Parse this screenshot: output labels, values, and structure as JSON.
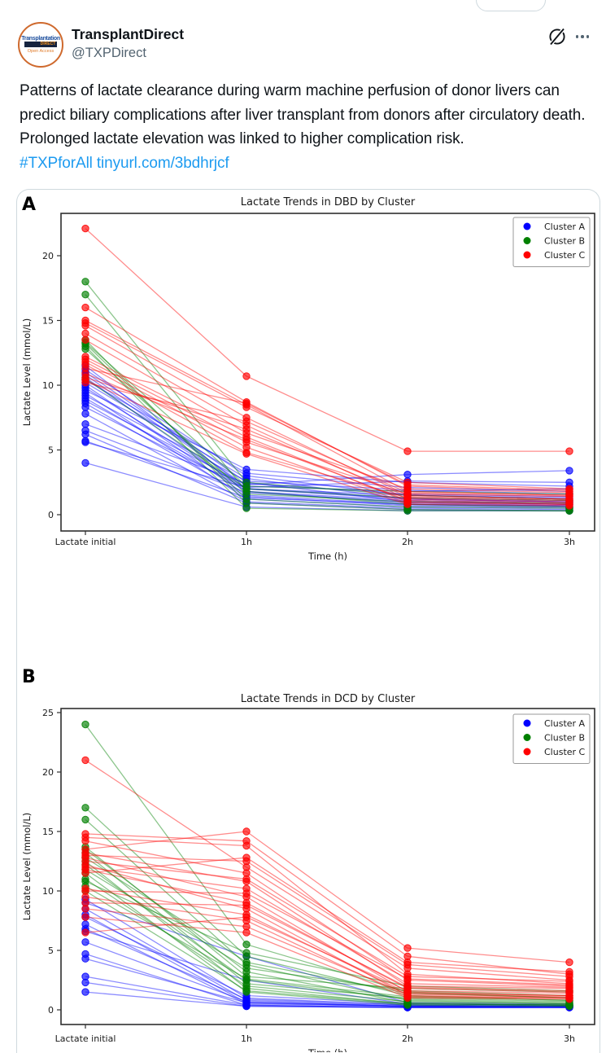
{
  "header": {
    "name": "TransplantDirect",
    "handle": "@TXPDirect",
    "avatar": {
      "line1": "Transplantation",
      "line2": "DIRECT",
      "line3": "Open Access"
    },
    "icons": {
      "grok": "circle-slash",
      "more": "ellipsis"
    }
  },
  "tweet": {
    "text": "Patterns of lactate clearance during warm machine perfusion of donor livers can predict biliary complications after liver transplant from donors after circulatory death. Prolonged lactate elevation was linked to higher complication risk. ",
    "hashtag": "#TXPforAll",
    "link": "tinyurl.com/3bdhrjcf",
    "link_color": "#1d9bf0",
    "text_color": "#0f1419",
    "border_color": "#cfd9de"
  },
  "chart_data": [
    {
      "type": "line",
      "panel_label": "A",
      "title": "Lactate Trends in DBD by Cluster",
      "xlabel": "Time (h)",
      "ylabel": "Lactate Level (mmol/L)",
      "categories": [
        "Lactate initial",
        "1h",
        "2h",
        "3h"
      ],
      "yticks": [
        0,
        5,
        10,
        15,
        20
      ],
      "ylim": [
        -1.2,
        23.3
      ],
      "grid": false,
      "legend": {
        "position": "upper right",
        "entries": [
          {
            "label": "Cluster A",
            "color": "#0000ff"
          },
          {
            "label": "Cluster B",
            "color": "#008000"
          },
          {
            "label": "Cluster C",
            "color": "#ff0000"
          }
        ]
      },
      "series": [
        {
          "name": "Cluster A",
          "color": "#0000ff",
          "trajectories": [
            [
              11.5,
              2.0,
              1.2,
              1.0
            ],
            [
              11.2,
              3.0,
              1.5,
              1.2
            ],
            [
              11.0,
              2.5,
              1.0,
              0.8
            ],
            [
              10.8,
              2.2,
              1.8,
              2.0
            ],
            [
              10.6,
              1.8,
              0.9,
              0.7
            ],
            [
              10.4,
              3.2,
              2.1,
              1.8
            ],
            [
              10.2,
              2.8,
              1.2,
              1.0
            ],
            [
              10.0,
              1.5,
              0.8,
              0.6
            ],
            [
              9.8,
              2.0,
              1.5,
              1.3
            ],
            [
              9.6,
              3.5,
              2.5,
              2.2
            ],
            [
              9.4,
              1.2,
              0.6,
              0.5
            ],
            [
              9.2,
              2.6,
              1.9,
              1.6
            ],
            [
              9.0,
              1.8,
              1.1,
              0.9
            ],
            [
              8.8,
              2.3,
              3.1,
              3.4
            ],
            [
              8.6,
              1.4,
              0.7,
              0.6
            ],
            [
              8.3,
              2.0,
              1.3,
              1.1
            ],
            [
              7.8,
              1.0,
              0.5,
              0.4
            ],
            [
              7.0,
              2.4,
              1.6,
              1.4
            ],
            [
              6.5,
              1.7,
              1.0,
              0.8
            ],
            [
              6.2,
              0.9,
              0.4,
              0.3
            ],
            [
              5.7,
              1.3,
              0.8,
              0.7
            ],
            [
              5.6,
              2.1,
              2.6,
              2.5
            ],
            [
              4.0,
              0.6,
              0.3,
              0.3
            ]
          ]
        },
        {
          "name": "Cluster B",
          "color": "#008000",
          "trajectories": [
            [
              18.0,
              2.5,
              1.5,
              1.2
            ],
            [
              17.0,
              1.8,
              0.8,
              0.6
            ],
            [
              13.5,
              0.9,
              0.4,
              0.3
            ],
            [
              13.3,
              2.2,
              1.8,
              1.6
            ],
            [
              13.2,
              1.2,
              0.6,
              0.5
            ],
            [
              13.0,
              0.5,
              0.3,
              0.3
            ],
            [
              12.8,
              1.6,
              1.0,
              0.9
            ],
            [
              10.5,
              2.0,
              1.3,
              1.1
            ]
          ]
        },
        {
          "name": "Cluster C",
          "color": "#ff0000",
          "trajectories": [
            [
              22.1,
              10.7,
              4.9,
              4.9
            ],
            [
              16.0,
              8.7,
              2.2,
              1.8
            ],
            [
              15.0,
              8.5,
              1.8,
              1.5
            ],
            [
              14.8,
              8.3,
              2.5,
              2.0
            ],
            [
              14.6,
              7.5,
              1.5,
              1.2
            ],
            [
              14.0,
              6.9,
              1.2,
              1.0
            ],
            [
              13.5,
              6.3,
              2.0,
              1.7
            ],
            [
              12.2,
              6.0,
              1.0,
              0.8
            ],
            [
              12.0,
              5.6,
              1.6,
              1.4
            ],
            [
              11.8,
              5.2,
              0.9,
              0.8
            ],
            [
              11.6,
              4.8,
              1.3,
              1.1
            ],
            [
              11.3,
              8.6,
              2.3,
              1.9
            ],
            [
              10.9,
              5.8,
              1.1,
              0.9
            ],
            [
              10.6,
              6.6,
              1.4,
              1.2
            ],
            [
              10.4,
              4.7,
              0.8,
              0.7
            ],
            [
              10.2,
              7.2,
              1.7,
              1.5
            ]
          ]
        }
      ]
    },
    {
      "type": "line",
      "panel_label": "B",
      "title": "Lactate Trends in DCD by Cluster",
      "xlabel": "Time (h)",
      "ylabel": "Lactate Level (mmol/L)",
      "categories": [
        "Lactate initial",
        "1h",
        "2h",
        "3h"
      ],
      "yticks": [
        0,
        5,
        10,
        15,
        20,
        25
      ],
      "ylim": [
        -1.2,
        25.5
      ],
      "grid": false,
      "legend": {
        "position": "upper right",
        "entries": [
          {
            "label": "Cluster A",
            "color": "#0000ff"
          },
          {
            "label": "Cluster B",
            "color": "#008000"
          },
          {
            "label": "Cluster C",
            "color": "#ff0000"
          }
        ]
      },
      "series": [
        {
          "name": "Cluster A",
          "color": "#0000ff",
          "trajectories": [
            [
              9.3,
              1.0,
              0.4,
              0.3
            ],
            [
              9.0,
              4.5,
              0.6,
              0.5
            ],
            [
              8.5,
              0.8,
              0.3,
              0.3
            ],
            [
              8.0,
              0.6,
              0.3,
              0.2
            ],
            [
              7.8,
              1.2,
              0.5,
              0.4
            ],
            [
              7.2,
              0.5,
              0.3,
              0.3
            ],
            [
              6.8,
              0.9,
              0.4,
              0.3
            ],
            [
              6.6,
              2.5,
              0.5,
              0.4
            ],
            [
              5.7,
              0.7,
              0.3,
              0.3
            ],
            [
              4.7,
              0.4,
              0.2,
              0.2
            ],
            [
              4.3,
              0.6,
              0.3,
              0.3
            ],
            [
              2.8,
              0.4,
              0.2,
              0.2
            ],
            [
              2.3,
              0.3,
              0.2,
              0.2
            ],
            [
              1.5,
              0.3,
              0.2,
              0.2
            ]
          ]
        },
        {
          "name": "Cluster B",
          "color": "#008000",
          "trajectories": [
            [
              24.0,
              5.5,
              1.5,
              1.0
            ],
            [
              17.0,
              4.5,
              1.2,
              0.8
            ],
            [
              16.0,
              3.8,
              0.8,
              0.5
            ],
            [
              13.7,
              2.8,
              1.8,
              1.5
            ],
            [
              13.5,
              3.2,
              0.6,
              0.4
            ],
            [
              13.2,
              2.2,
              1.0,
              0.7
            ],
            [
              12.8,
              4.0,
              1.4,
              1.0
            ],
            [
              12.5,
              1.8,
              0.5,
              0.4
            ],
            [
              12.2,
              2.5,
              0.9,
              0.6
            ],
            [
              11.8,
              3.5,
              1.6,
              1.2
            ],
            [
              11.5,
              1.5,
              0.4,
              0.3
            ],
            [
              11.0,
              2.0,
              0.7,
              0.5
            ],
            [
              10.8,
              4.8,
              2.0,
              1.6
            ],
            [
              10.4,
              2.6,
              1.1,
              0.8
            ],
            [
              10.0,
              1.6,
              0.5,
              0.4
            ]
          ]
        },
        {
          "name": "Cluster C",
          "color": "#ff0000",
          "trajectories": [
            [
              21.0,
              12.0,
              3.5,
              2.5
            ],
            [
              14.8,
              14.2,
              4.5,
              3.0
            ],
            [
              14.5,
              13.8,
              3.0,
              2.2
            ],
            [
              14.2,
              11.5,
              2.5,
              2.0
            ],
            [
              13.5,
              15.0,
              5.2,
              4.0
            ],
            [
              13.2,
              10.8,
              2.0,
              1.8
            ],
            [
              13.0,
              12.5,
              3.8,
              2.8
            ],
            [
              12.8,
              9.5,
              1.5,
              1.2
            ],
            [
              12.5,
              11.0,
              2.8,
              2.4
            ],
            [
              12.2,
              8.5,
              1.2,
              1.0
            ],
            [
              12.0,
              10.2,
              2.2,
              1.9
            ],
            [
              11.8,
              9.0,
              1.8,
              1.5
            ],
            [
              11.5,
              12.8,
              4.0,
              3.2
            ],
            [
              10.2,
              8.0,
              1.4,
              1.2
            ],
            [
              10.0,
              9.8,
              2.6,
              2.1
            ],
            [
              9.5,
              7.5,
              1.1,
              1.0
            ],
            [
              9.0,
              8.8,
              1.9,
              1.6
            ],
            [
              8.5,
              7.0,
              1.3,
              1.1
            ],
            [
              7.8,
              6.5,
              1.0,
              0.9
            ],
            [
              6.5,
              7.8,
              1.6,
              1.4
            ]
          ]
        }
      ]
    }
  ]
}
